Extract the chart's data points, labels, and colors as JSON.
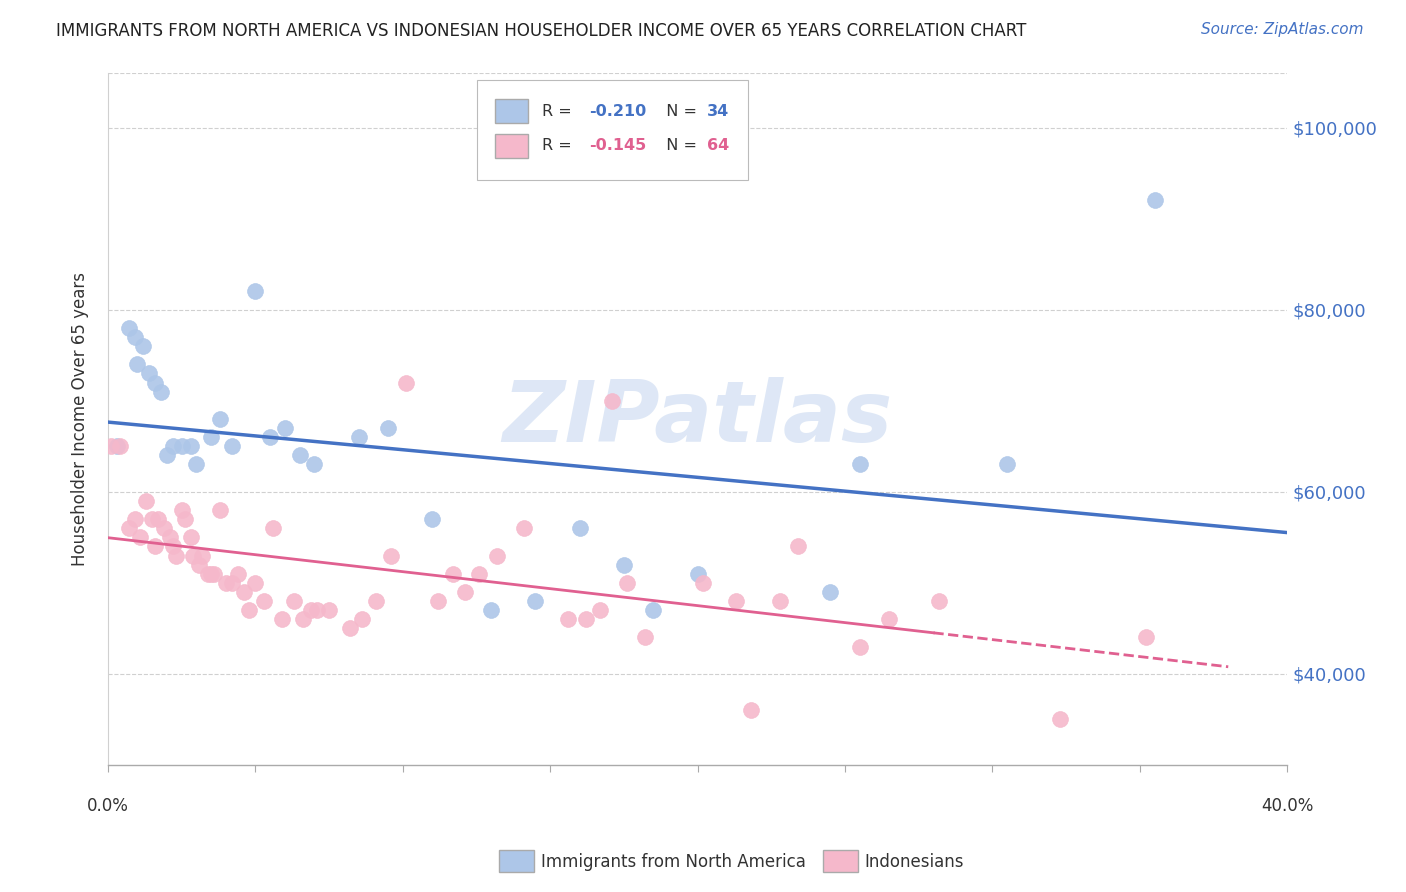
{
  "title": "IMMIGRANTS FROM NORTH AMERICA VS INDONESIAN HOUSEHOLDER INCOME OVER 65 YEARS CORRELATION CHART",
  "source": "Source: ZipAtlas.com",
  "ylabel": "Householder Income Over 65 years",
  "xlim": [
    0.0,
    0.4
  ],
  "ylim": [
    30000,
    106000
  ],
  "yticks": [
    40000,
    60000,
    80000,
    100000
  ],
  "ytick_labels": [
    "$40,000",
    "$60,000",
    "$80,000",
    "$100,000"
  ],
  "xticks": [
    0.0,
    0.05,
    0.1,
    0.15,
    0.2,
    0.25,
    0.3,
    0.35,
    0.4
  ],
  "legend_r1": "R = -0.210",
  "legend_n1": "N = 34",
  "legend_r2": "R = -0.145",
  "legend_n2": "N = 64",
  "blue_color": "#adc6e8",
  "pink_color": "#f5b8cb",
  "line_blue": "#4472c4",
  "line_pink": "#e06090",
  "watermark_text": "ZIPatlas",
  "watermark_color": "#c8d8f0",
  "title_color": "#222222",
  "right_axis_color": "#4472c4",
  "blue_scatter_x": [
    0.003,
    0.007,
    0.009,
    0.01,
    0.012,
    0.014,
    0.016,
    0.018,
    0.02,
    0.022,
    0.025,
    0.028,
    0.03,
    0.035,
    0.038,
    0.042,
    0.05,
    0.055,
    0.06,
    0.065,
    0.07,
    0.085,
    0.095,
    0.11,
    0.13,
    0.145,
    0.16,
    0.175,
    0.185,
    0.2,
    0.245,
    0.255,
    0.305,
    0.355
  ],
  "blue_scatter_y": [
    65000,
    78000,
    77000,
    74000,
    76000,
    73000,
    72000,
    71000,
    64000,
    65000,
    65000,
    65000,
    63000,
    66000,
    68000,
    65000,
    82000,
    66000,
    67000,
    64000,
    63000,
    66000,
    67000,
    57000,
    47000,
    48000,
    56000,
    52000,
    47000,
    51000,
    49000,
    63000,
    63000,
    92000
  ],
  "pink_scatter_x": [
    0.001,
    0.004,
    0.007,
    0.009,
    0.011,
    0.013,
    0.015,
    0.016,
    0.017,
    0.019,
    0.021,
    0.022,
    0.023,
    0.025,
    0.026,
    0.028,
    0.029,
    0.031,
    0.032,
    0.034,
    0.035,
    0.036,
    0.038,
    0.04,
    0.042,
    0.044,
    0.046,
    0.048,
    0.05,
    0.053,
    0.056,
    0.059,
    0.063,
    0.066,
    0.069,
    0.071,
    0.075,
    0.082,
    0.086,
    0.091,
    0.096,
    0.101,
    0.112,
    0.117,
    0.121,
    0.126,
    0.132,
    0.141,
    0.156,
    0.162,
    0.167,
    0.171,
    0.176,
    0.182,
    0.202,
    0.213,
    0.218,
    0.228,
    0.234,
    0.255,
    0.265,
    0.282,
    0.323,
    0.352
  ],
  "pink_scatter_y": [
    65000,
    65000,
    56000,
    57000,
    55000,
    59000,
    57000,
    54000,
    57000,
    56000,
    55000,
    54000,
    53000,
    58000,
    57000,
    55000,
    53000,
    52000,
    53000,
    51000,
    51000,
    51000,
    58000,
    50000,
    50000,
    51000,
    49000,
    47000,
    50000,
    48000,
    56000,
    46000,
    48000,
    46000,
    47000,
    47000,
    47000,
    45000,
    46000,
    48000,
    53000,
    72000,
    48000,
    51000,
    49000,
    51000,
    53000,
    56000,
    46000,
    46000,
    47000,
    70000,
    50000,
    44000,
    50000,
    48000,
    36000,
    48000,
    54000,
    43000,
    46000,
    48000,
    35000,
    44000
  ]
}
